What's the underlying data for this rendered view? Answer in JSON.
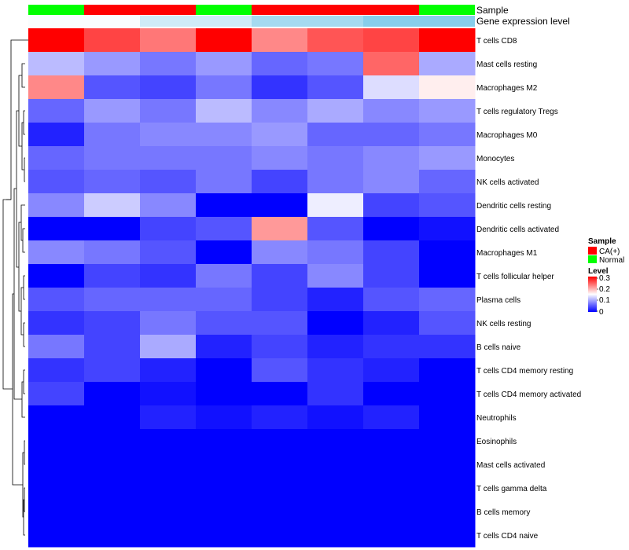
{
  "chart_data": {
    "type": "heatmap",
    "annotation_labels": [
      "Sample",
      "Gene expression level"
    ],
    "sample_groups": [
      "Normal",
      "CA(+)",
      "CA(+)",
      "Normal",
      "CA(+)",
      "CA(+)",
      "CA(+)",
      "Normal"
    ],
    "sample_colors": {
      "CA(+)": "#ff0000",
      "Normal": "#00ff00"
    },
    "gene_expression_level": [
      0.05,
      0.05,
      0.4,
      0.4,
      0.75,
      0.75,
      1.0,
      1.0
    ],
    "rows": [
      "T cells CD8",
      "Mast cells resting",
      "Macrophages M2",
      "T cells regulatory  Tregs",
      "Macrophages M0",
      "Monocytes",
      "NK cells activated",
      "Dendritic cells resting",
      "Dendritic cells activated",
      "Macrophages M1",
      "T cells follicular helper",
      "Plasma cells",
      "NK cells resting",
      "B cells naive",
      "T cells CD4 memory resting",
      "T cells CD4 memory activated",
      "Neutrophils",
      "Eosinophils",
      "Mast cells activated",
      "T cells gamma delta",
      "B cells memory",
      "T cells CD4 naive"
    ],
    "values": [
      [
        0.3,
        0.26,
        0.23,
        0.3,
        0.22,
        0.25,
        0.26,
        0.3
      ],
      [
        0.11,
        0.09,
        0.07,
        0.09,
        0.06,
        0.07,
        0.24,
        0.1
      ],
      [
        0.22,
        0.05,
        0.04,
        0.07,
        0.03,
        0.05,
        0.13,
        0.16
      ],
      [
        0.06,
        0.09,
        0.07,
        0.11,
        0.08,
        0.1,
        0.08,
        0.09
      ],
      [
        0.02,
        0.07,
        0.08,
        0.08,
        0.09,
        0.06,
        0.06,
        0.07
      ],
      [
        0.06,
        0.07,
        0.07,
        0.07,
        0.08,
        0.07,
        0.08,
        0.09
      ],
      [
        0.05,
        0.06,
        0.05,
        0.07,
        0.04,
        0.07,
        0.08,
        0.06
      ],
      [
        0.08,
        0.12,
        0.08,
        0.0,
        0.0,
        0.14,
        0.04,
        0.05
      ],
      [
        0.0,
        0.0,
        0.04,
        0.05,
        0.21,
        0.05,
        0.0,
        0.01
      ],
      [
        0.08,
        0.07,
        0.05,
        0.0,
        0.08,
        0.07,
        0.04,
        0.0
      ],
      [
        0.0,
        0.04,
        0.03,
        0.07,
        0.04,
        0.08,
        0.04,
        0.0
      ],
      [
        0.05,
        0.06,
        0.06,
        0.06,
        0.04,
        0.02,
        0.05,
        0.06
      ],
      [
        0.03,
        0.04,
        0.07,
        0.05,
        0.05,
        0.0,
        0.02,
        0.05
      ],
      [
        0.07,
        0.04,
        0.1,
        0.02,
        0.04,
        0.02,
        0.03,
        0.03
      ],
      [
        0.03,
        0.04,
        0.02,
        0.0,
        0.05,
        0.03,
        0.02,
        0.0
      ],
      [
        0.04,
        0.0,
        0.01,
        0.0,
        0.0,
        0.03,
        0.0,
        0.0
      ],
      [
        0.0,
        0.0,
        0.02,
        0.01,
        0.02,
        0.01,
        0.02,
        0.0
      ],
      [
        0.0,
        0.0,
        0.0,
        0.0,
        0.0,
        0.0,
        0.0,
        0.0
      ],
      [
        0.0,
        0.0,
        0.0,
        0.0,
        0.0,
        0.0,
        0.0,
        0.0
      ],
      [
        0.0,
        0.0,
        0.0,
        0.0,
        0.0,
        0.0,
        0.0,
        0.0
      ],
      [
        0.0,
        0.0,
        0.0,
        0.0,
        0.0,
        0.0,
        0.0,
        0.0
      ],
      [
        0.0,
        0.0,
        0.0,
        0.0,
        0.0,
        0.0,
        0.0,
        0.0
      ]
    ],
    "color_range": [
      0,
      0.3
    ],
    "color_stops": [
      "#0000ff",
      "#ffffff",
      "#ff0000"
    ],
    "expression_colors": [
      "#ffffff",
      "#87ceeb"
    ],
    "legend": {
      "sample_title": "Sample",
      "sample_entries": [
        "CA(+)",
        "Normal"
      ],
      "level_title": "Level",
      "level_ticks": [
        "0.3",
        "0.2",
        "0.1",
        "0"
      ]
    }
  }
}
